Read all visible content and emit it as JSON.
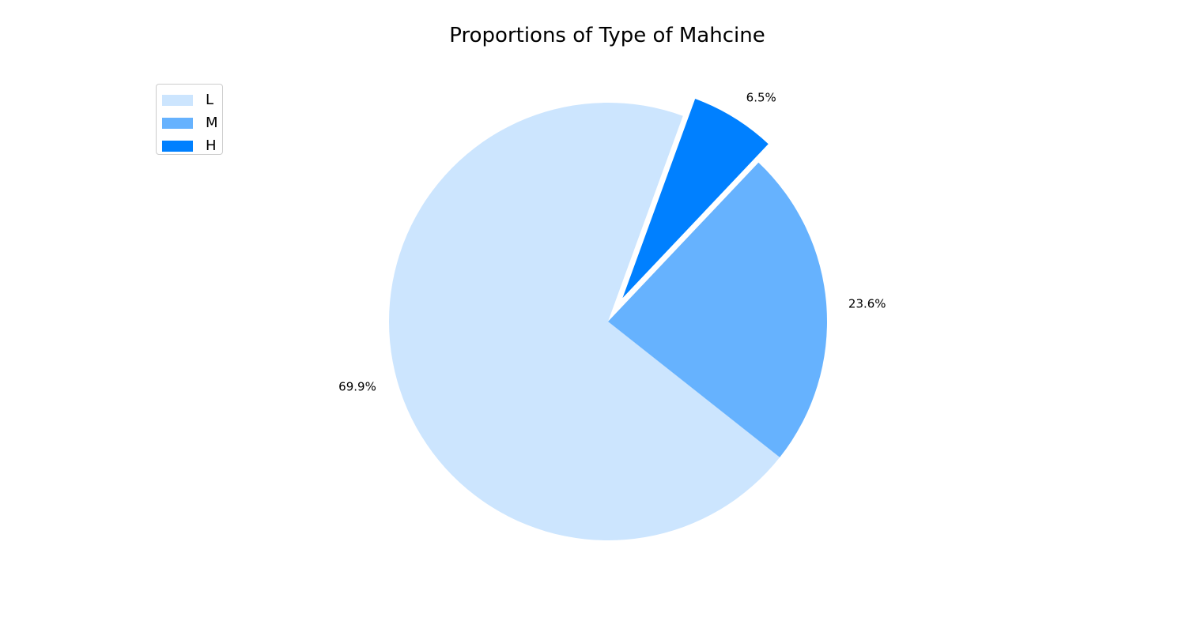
{
  "chart_data": {
    "type": "pie",
    "title": "Proportions of Type of Mahcine",
    "categories": [
      "L",
      "M",
      "H"
    ],
    "values": [
      69.9,
      23.6,
      6.5
    ],
    "value_labels": [
      "69.9%",
      "23.6%",
      "6.5%"
    ],
    "colors": [
      "#cce5fe",
      "#66b2fe",
      "#0080ff"
    ],
    "exploded": [
      false,
      false,
      true
    ],
    "legend_position": "upper-left"
  }
}
